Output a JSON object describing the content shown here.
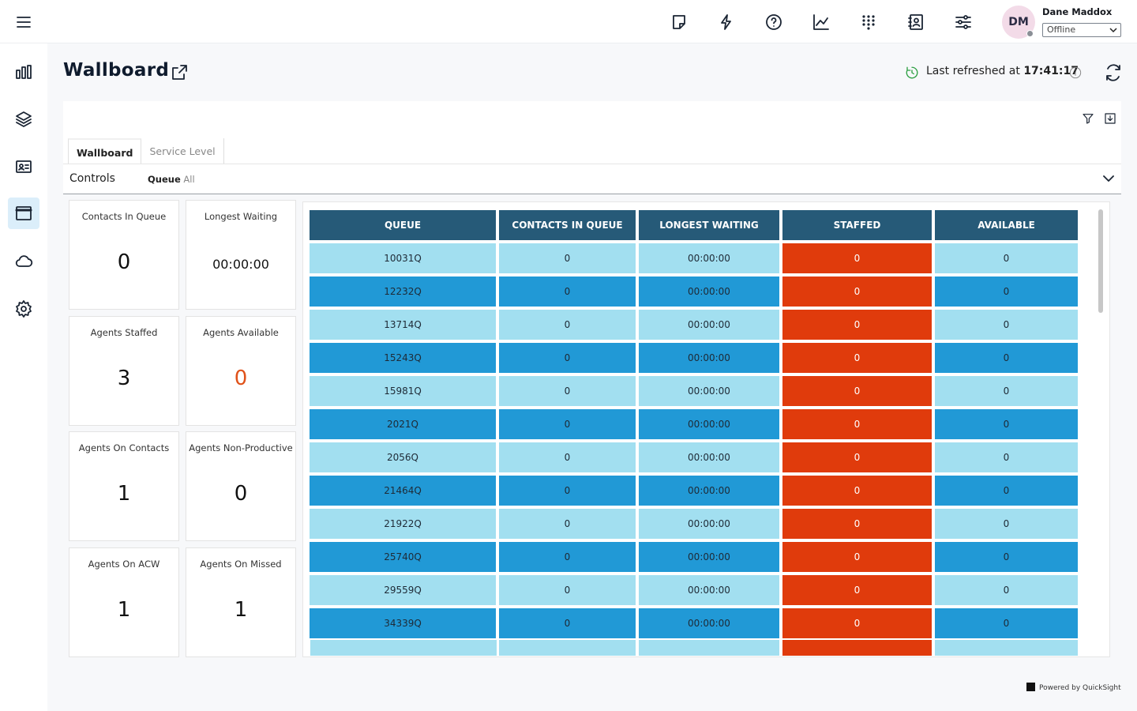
{
  "header": {
    "user_initials": "DM",
    "user_name": "Dane Maddox",
    "status": "Offline"
  },
  "page": {
    "title": "Wallboard",
    "refresh_label": "Last refreshed at",
    "refresh_time": "17:41:17"
  },
  "tabs": [
    "Wallboard",
    "Service Level"
  ],
  "controls": {
    "label": "Controls",
    "filter_name": "Queue",
    "filter_value": "All"
  },
  "kpis": [
    {
      "label": "Contacts In Queue",
      "value": 0
    },
    {
      "label": "Longest Waiting",
      "value": "00:00:00"
    },
    {
      "label": "Agents Staffed",
      "value": 3
    },
    {
      "label": "Agents Available",
      "value": 0
    },
    {
      "label": "Agents On Contacts",
      "value": 1
    },
    {
      "label": "Agents Non-Productive",
      "value": 0
    },
    {
      "label": "Agents On ACW",
      "value": 1
    },
    {
      "label": "Agents On Missed",
      "value": 1
    }
  ],
  "table": {
    "columns": [
      "QUEUE",
      "CONTACTS IN QUEUE",
      "LONGEST WAITING",
      "STAFFED",
      "AVAILABLE"
    ],
    "rows": [
      [
        "10031Q",
        0,
        "00:00:00",
        0,
        0
      ],
      [
        "12232Q",
        0,
        "00:00:00",
        0,
        0
      ],
      [
        "13714Q",
        0,
        "00:00:00",
        0,
        0
      ],
      [
        "15243Q",
        0,
        "00:00:00",
        0,
        0
      ],
      [
        "15981Q",
        0,
        "00:00:00",
        0,
        0
      ],
      [
        "2021Q",
        0,
        "00:00:00",
        0,
        0
      ],
      [
        "2056Q",
        0,
        "00:00:00",
        0,
        0
      ],
      [
        "21464Q",
        0,
        "00:00:00",
        0,
        0
      ],
      [
        "21922Q",
        0,
        "00:00:00",
        0,
        0
      ],
      [
        "25740Q",
        0,
        "00:00:00",
        0,
        0
      ],
      [
        "29559Q",
        0,
        "00:00:00",
        0,
        0
      ],
      [
        "34339Q",
        0,
        "00:00:00",
        0,
        0
      ]
    ]
  },
  "footer": "Powered by QuickSight"
}
